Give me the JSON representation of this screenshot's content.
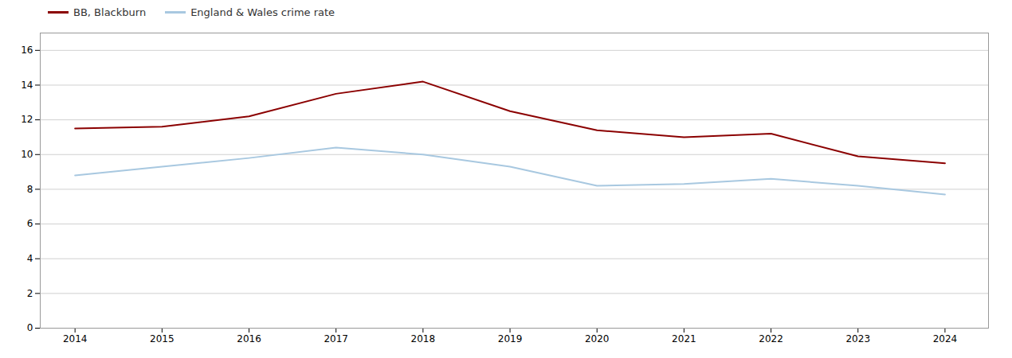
{
  "chart_data": {
    "type": "line",
    "x": [
      2014,
      2015,
      2016,
      2017,
      2018,
      2019,
      2020,
      2021,
      2022,
      2023,
      2024
    ],
    "series": [
      {
        "name": "BB, Blackburn",
        "color": "#8B0000",
        "values": [
          11.5,
          11.6,
          12.2,
          13.5,
          14.2,
          12.5,
          11.4,
          11.0,
          11.2,
          9.9,
          9.5
        ]
      },
      {
        "name": "England & Wales crime rate",
        "color": "#A8C8E0",
        "values": [
          8.8,
          9.3,
          9.8,
          10.4,
          10.0,
          9.3,
          8.2,
          8.3,
          8.6,
          8.2,
          7.7
        ]
      }
    ],
    "xlim": [
      2013.6,
      2024.5
    ],
    "xticks": [
      2014,
      2015,
      2016,
      2017,
      2018,
      2019,
      2020,
      2021,
      2022,
      2023,
      2024
    ],
    "ylim": [
      0,
      17
    ],
    "yticks": [
      0,
      2,
      4,
      6,
      8,
      10,
      12,
      14,
      16
    ],
    "grid": true,
    "legend": "upper left"
  }
}
